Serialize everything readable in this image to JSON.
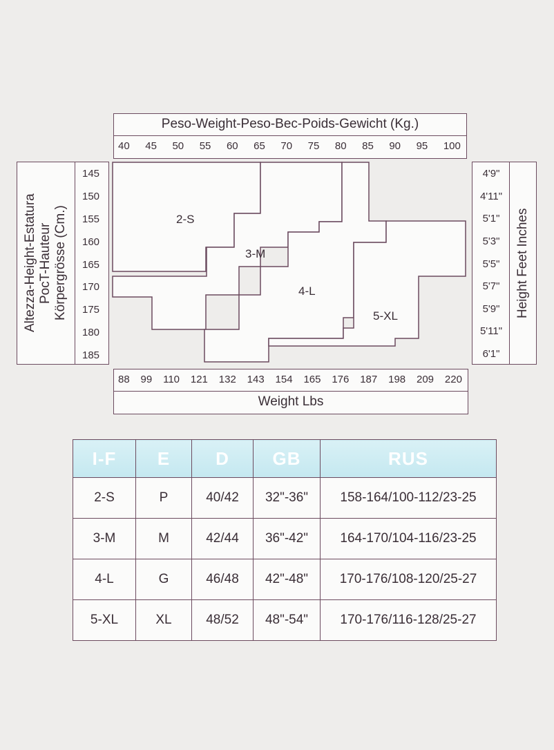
{
  "weight_kg": {
    "title": "Peso-Weight-Peso-Bec-Poids-Gewicht (Kg.)",
    "ticks": [
      "40",
      "45",
      "50",
      "55",
      "60",
      "65",
      "70",
      "75",
      "80",
      "85",
      "90",
      "95",
      "100"
    ]
  },
  "weight_lbs": {
    "title": "Weight Lbs",
    "ticks": [
      "88",
      "99",
      "110",
      "121",
      "132",
      "143",
      "154",
      "165",
      "176",
      "187",
      "198",
      "209",
      "220"
    ]
  },
  "height_cm": {
    "title_lines": [
      "Altezza-Height-Estatura",
      "PocT-Hauteur",
      "Körpergrösse (Cm.)"
    ],
    "ticks": [
      "145",
      "150",
      "155",
      "160",
      "165",
      "170",
      "175",
      "180",
      "185"
    ]
  },
  "height_ft": {
    "title": "Height Feet Inches",
    "ticks": [
      "4'9\"",
      "4'11\"",
      "5'1\"",
      "5'3\"",
      "5'5\"",
      "5'7\"",
      "5'9\"",
      "5'11\"",
      "6'1\""
    ]
  },
  "zones": [
    "2-S",
    "3-M",
    "4-L",
    "5-XL"
  ],
  "table": {
    "headers": [
      "I-F",
      "E",
      "D",
      "GB",
      "RUS"
    ],
    "rows": [
      [
        "2-S",
        "P",
        "40/42",
        "32\"-36\"",
        "158-164/100-112/23-25"
      ],
      [
        "3-M",
        "M",
        "42/44",
        "36\"-42\"",
        "164-170/104-116/23-25"
      ],
      [
        "4-L",
        "G",
        "46/48",
        "42\"-48\"",
        "170-176/108-120/25-27"
      ],
      [
        "5-XL",
        "XL",
        "48/52",
        "48\"-54\"",
        "170-176/116-128/25-27"
      ]
    ]
  },
  "colors": {
    "border": "#6b4a5e",
    "header_bg": "#c4e8f0",
    "page_bg": "#eeedeb"
  }
}
